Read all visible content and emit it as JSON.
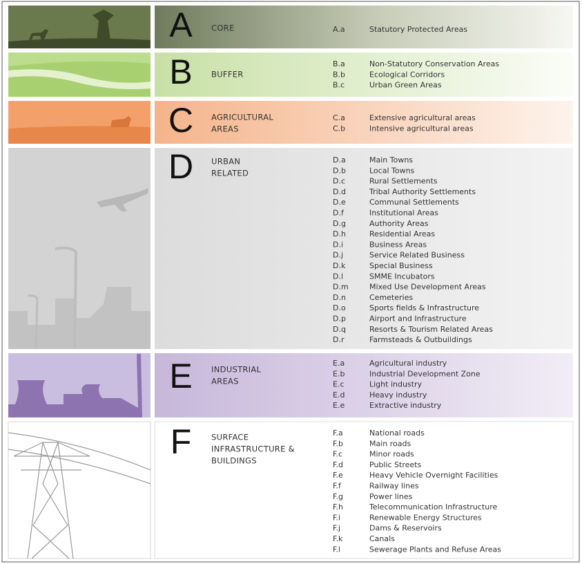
{
  "sections": [
    {
      "letter": "A",
      "name_lines": [
        "CORE"
      ],
      "items": [
        {
          "code": "A.a",
          "label": "Statutory Protected Areas"
        }
      ]
    },
    {
      "letter": "B",
      "name_lines": [
        "BUFFER"
      ],
      "items": [
        {
          "code": "B.a",
          "label": "Non-Statutory Conservation Areas"
        },
        {
          "code": "B.b",
          "label": "Ecological Corridors"
        },
        {
          "code": "B.c",
          "label": "Urban Green Areas"
        }
      ]
    },
    {
      "letter": "C",
      "name_lines": [
        "AGRICULTURAL",
        "AREAS"
      ],
      "items": [
        {
          "code": "C.a",
          "label": "Extensive agricultural areas"
        },
        {
          "code": "C.b",
          "label": "Intensive agricultural areas"
        }
      ]
    },
    {
      "letter": "D",
      "name_lines": [
        "URBAN",
        "RELATED"
      ],
      "items": [
        {
          "code": "D.a",
          "label": "Main Towns"
        },
        {
          "code": "D.b",
          "label": "Local Towns"
        },
        {
          "code": "D.c",
          "label": "Rural Settlements"
        },
        {
          "code": "D.d",
          "label": "Tribal Authority Settlements"
        },
        {
          "code": "D.e",
          "label": "Communal Settlements"
        },
        {
          "code": "D.f",
          "label": "Institutional Areas"
        },
        {
          "code": "D.g",
          "label": "Authority Areas"
        },
        {
          "code": "D.h",
          "label": "Residential Areas"
        },
        {
          "code": "D.i",
          "label": "Business Areas"
        },
        {
          "code": "D.j",
          "label": "Service Related Business"
        },
        {
          "code": "D.k",
          "label": "Special Business"
        },
        {
          "code": "D.l",
          "label": "SMME Incubators"
        },
        {
          "code": "D.m",
          "label": "Mixed Use Development Areas"
        },
        {
          "code": "D.n",
          "label": "Cemeteries"
        },
        {
          "code": "D.o",
          "label": "Sports fields & Infrastructure"
        },
        {
          "code": "D.p",
          "label": "Airport and Infrastructure"
        },
        {
          "code": "D.q",
          "label": "Resorts & Tourism Related Areas"
        },
        {
          "code": "D.r",
          "label": "Farmsteads & Outbuildings"
        }
      ]
    },
    {
      "letter": "E",
      "name_lines": [
        "INDUSTRIAL",
        "AREAS"
      ],
      "items": [
        {
          "code": "E.a",
          "label": "Agricultural industry"
        },
        {
          "code": "E.b",
          "label": "Industrial Development Zone"
        },
        {
          "code": "E.c",
          "label": "Light industry"
        },
        {
          "code": "E.d",
          "label": "Heavy industry"
        },
        {
          "code": "E.e",
          "label": "Extractive industry"
        }
      ]
    },
    {
      "letter": "F",
      "name_lines": [
        "SURFACE",
        "INFRASTRUCTURE &",
        "BUILDINGS"
      ],
      "items": [
        {
          "code": "F.a",
          "label": "National roads"
        },
        {
          "code": "F.b",
          "label": "Main roads"
        },
        {
          "code": "F.c",
          "label": "Minor roads"
        },
        {
          "code": "F.d",
          "label": "Public Streets"
        },
        {
          "code": "F.e",
          "label": "Heavy Vehicle Overnight Facilities"
        },
        {
          "code": "F.f",
          "label": "Railway lines"
        },
        {
          "code": "F.g",
          "label": "Power lines"
        },
        {
          "code": "F.h",
          "label": "Telecommunication Infrastructure"
        },
        {
          "code": "F.i",
          "label": "Renewable Energy Structures"
        },
        {
          "code": "F.j",
          "label": "Dams & Reservoirs"
        },
        {
          "code": "F.k",
          "label": "Canals"
        },
        {
          "code": "F.l",
          "label": "Sewerage Plants and Refuse Areas"
        }
      ]
    }
  ]
}
